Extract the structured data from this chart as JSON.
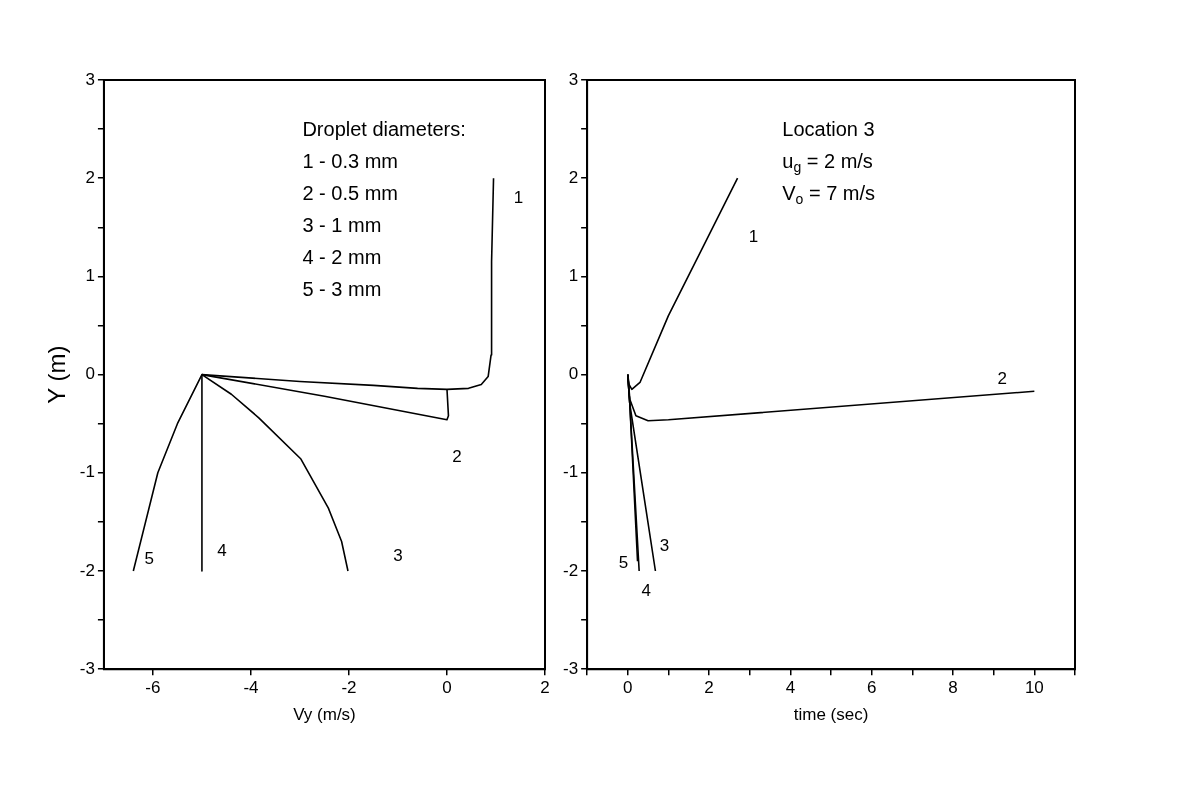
{
  "chart_data": [
    {
      "type": "line",
      "xlabel": "Vy (m/s)",
      "ylabel": "Y (m)",
      "xlim": [
        -7,
        2
      ],
      "xticks": [
        -6,
        -4,
        -2,
        0,
        2
      ],
      "ylim": [
        -3,
        3
      ],
      "yticks": [
        -3,
        {
          "value": -2.5,
          "label": null
        },
        -2,
        {
          "value": -1.5,
          "label": null
        },
        -1,
        {
          "value": -0.5,
          "label": null
        },
        0,
        {
          "value": 0.5,
          "label": null
        },
        1,
        {
          "value": 1.5,
          "label": null
        },
        2,
        {
          "value": 2.5,
          "label": null
        },
        3
      ],
      "grid": false,
      "legend": false,
      "marker": "none",
      "line_style": "solid",
      "series": [
        {
          "name": "1",
          "color": "#000000",
          "x": [
            -5,
            -3,
            -1.5,
            -0.6,
            0,
            0.44,
            0.7,
            0.84,
            0.9,
            0.91,
            0.95
          ],
          "values": [
            0,
            -0.07,
            -0.11,
            -0.14,
            -0.15,
            -0.14,
            -0.1,
            -0.02,
            0.2,
            1.15,
            2
          ]
        },
        {
          "name": "2",
          "color": "#000000",
          "x": [
            -5,
            -2.5,
            0,
            0.03,
            0
          ],
          "values": [
            0,
            -0.22,
            -0.46,
            -0.42,
            -0.15
          ]
        },
        {
          "name": "3",
          "color": "#000000",
          "x": [
            -5,
            -4.4,
            -3.84,
            -2.98,
            -2.42,
            -2.15,
            -2.02
          ],
          "values": [
            0,
            -0.2,
            -0.44,
            -0.86,
            -1.36,
            -1.7,
            -2
          ]
        },
        {
          "name": "4",
          "color": "#000000",
          "x": [
            -5,
            -5
          ],
          "values": [
            0,
            -2
          ]
        },
        {
          "name": "5",
          "color": "#000000",
          "x": [
            -5,
            -5.5,
            -5.9,
            -6.4
          ],
          "values": [
            0,
            -0.5,
            -1,
            -2
          ]
        }
      ],
      "annotations": [
        "Droplet diameters:",
        "1 - 0.3 mm",
        "2 - 0.5 mm",
        "3 - 1 mm",
        "4 - 2 mm",
        "5 - 3 mm"
      ]
    },
    {
      "type": "line",
      "xlabel": "time (sec)",
      "xlim": [
        -1,
        11
      ],
      "xticks": [
        {
          "value": -1,
          "label": null
        },
        0,
        {
          "value": 1,
          "label": null
        },
        2,
        {
          "value": 3,
          "label": null
        },
        4,
        {
          "value": 5,
          "label": null
        },
        6,
        {
          "value": 7,
          "label": null
        },
        8,
        {
          "value": 9,
          "label": null
        },
        10,
        {
          "value": 11,
          "label": null
        }
      ],
      "ylim": [
        -3,
        3
      ],
      "yticks": [
        -3,
        {
          "value": -2.5,
          "label": null
        },
        -2,
        {
          "value": -1.5,
          "label": null
        },
        -1,
        {
          "value": -0.5,
          "label": null
        },
        0,
        {
          "value": 0.5,
          "label": null
        },
        1,
        {
          "value": 1.5,
          "label": null
        },
        2,
        {
          "value": 2.5,
          "label": null
        },
        3
      ],
      "grid": false,
      "legend": false,
      "marker": "none",
      "line_style": "solid",
      "series": [
        {
          "name": "1",
          "color": "#000000",
          "x": [
            0,
            0.03,
            0.1,
            0.3,
            1,
            2.7
          ],
          "values": [
            0,
            -0.1,
            -0.15,
            -0.08,
            0.6,
            2
          ]
        },
        {
          "name": "2",
          "color": "#000000",
          "x": [
            0,
            0.05,
            0.2,
            0.5,
            1,
            10
          ],
          "values": [
            0,
            -0.25,
            -0.42,
            -0.47,
            -0.46,
            -0.17
          ]
        },
        {
          "name": "3",
          "color": "#000000",
          "x": [
            0,
            0.05,
            0.68
          ],
          "values": [
            0,
            -0.3,
            -2
          ]
        },
        {
          "name": "4",
          "color": "#000000",
          "x": [
            0,
            0.05,
            0.28
          ],
          "values": [
            0,
            -0.3,
            -2
          ]
        },
        {
          "name": "5",
          "color": "#000000",
          "x": [
            0,
            0.05,
            0.24
          ],
          "values": [
            0,
            -0.3,
            -1.9
          ]
        }
      ],
      "annotations": [
        "Location 3",
        "u$_{g}$ = 2 m/s",
        "V$_{o}$ = 7 m/s"
      ]
    }
  ]
}
